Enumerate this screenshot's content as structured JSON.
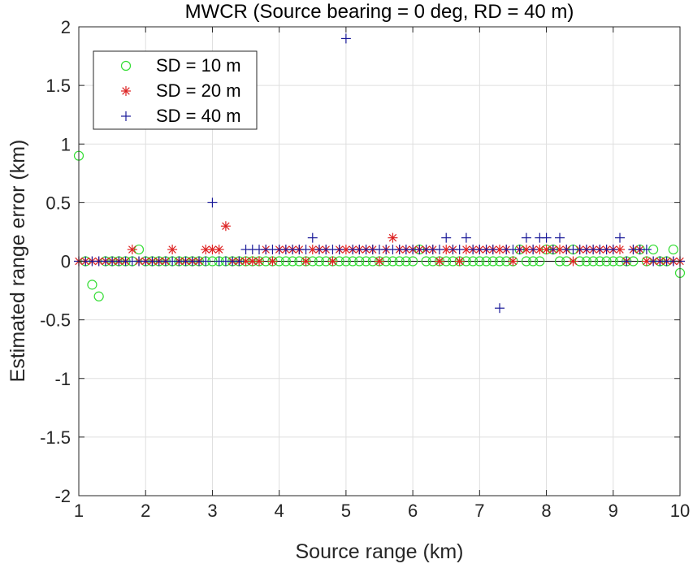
{
  "chart_data": {
    "type": "scatter",
    "title": "MWCR (Source bearing = 0 deg, RD = 40 m)",
    "xlabel": "Source range (km)",
    "ylabel": "Estimated range error (km)",
    "xlim": [
      1,
      10
    ],
    "ylim": [
      -2,
      2
    ],
    "xticks": [
      "1",
      "2",
      "3",
      "4",
      "5",
      "6",
      "7",
      "8",
      "9",
      "10"
    ],
    "yticks": [
      "-2",
      "-1.5",
      "-1",
      "-0.5",
      "0",
      "0.5",
      "1",
      "1.5",
      "2"
    ],
    "grid": true,
    "legend_position": "top-left",
    "reference_line": {
      "y": 0,
      "color": "#000000"
    },
    "series": [
      {
        "name": "SD = 10 m",
        "marker": "circle",
        "color": "#33dd33",
        "x": [
          1.0,
          1.1,
          1.2,
          1.3,
          1.4,
          1.5,
          1.6,
          1.7,
          1.8,
          1.9,
          2.0,
          2.1,
          2.2,
          2.3,
          2.4,
          2.5,
          2.6,
          2.7,
          2.8,
          2.9,
          3.0,
          3.1,
          3.2,
          3.3,
          3.4,
          3.5,
          3.6,
          3.7,
          3.8,
          3.9,
          4.0,
          4.1,
          4.2,
          4.3,
          4.4,
          4.5,
          4.6,
          4.7,
          4.8,
          4.9,
          5.0,
          5.1,
          5.2,
          5.3,
          5.4,
          5.5,
          5.6,
          5.7,
          5.8,
          5.9,
          6.0,
          6.1,
          6.2,
          6.3,
          6.4,
          6.5,
          6.6,
          6.7,
          6.8,
          6.9,
          7.0,
          7.1,
          7.2,
          7.3,
          7.4,
          7.5,
          7.6,
          7.7,
          7.8,
          7.9,
          8.0,
          8.1,
          8.2,
          8.3,
          8.4,
          8.5,
          8.6,
          8.7,
          8.8,
          8.9,
          9.0,
          9.1,
          9.2,
          9.3,
          9.4,
          9.5,
          9.6,
          9.7,
          9.8,
          9.9,
          10.0
        ],
        "y": [
          0.9,
          0,
          -0.2,
          -0.3,
          0,
          0,
          0,
          0,
          0,
          0.1,
          0,
          0,
          0,
          0,
          0,
          0,
          0,
          0,
          0,
          0,
          0,
          0,
          0,
          0,
          0,
          0,
          0,
          0,
          0,
          0,
          0,
          0,
          0,
          0,
          0,
          0,
          0,
          0,
          0,
          0,
          0,
          0,
          0,
          0,
          0,
          0,
          0,
          0,
          0,
          0,
          0,
          0.1,
          0,
          0,
          0,
          0,
          0,
          0,
          0,
          0,
          0,
          0,
          0,
          0,
          0,
          0,
          0.1,
          0,
          0,
          0,
          0.1,
          0.1,
          0,
          0,
          0.1,
          0,
          0,
          0,
          0,
          0,
          0,
          0,
          0,
          0,
          0.1,
          0,
          0.1,
          0,
          0,
          0.1,
          -0.1
        ]
      },
      {
        "name": "SD = 20 m",
        "marker": "asterisk",
        "color": "#dd2222",
        "x": [
          1.0,
          1.1,
          1.2,
          1.3,
          1.4,
          1.5,
          1.6,
          1.7,
          1.8,
          1.9,
          2.0,
          2.1,
          2.2,
          2.3,
          2.4,
          2.5,
          2.6,
          2.7,
          2.8,
          2.9,
          3.0,
          3.1,
          3.2,
          3.3,
          3.4,
          3.5,
          3.6,
          3.7,
          3.8,
          3.9,
          4.0,
          4.1,
          4.2,
          4.3,
          4.4,
          4.5,
          4.6,
          4.7,
          4.8,
          4.9,
          5.0,
          5.1,
          5.2,
          5.3,
          5.4,
          5.5,
          5.6,
          5.7,
          5.8,
          5.9,
          6.0,
          6.1,
          6.2,
          6.3,
          6.4,
          6.5,
          6.6,
          6.7,
          6.8,
          6.9,
          7.0,
          7.1,
          7.2,
          7.3,
          7.4,
          7.5,
          7.6,
          7.7,
          7.8,
          7.9,
          8.0,
          8.1,
          8.2,
          8.3,
          8.4,
          8.5,
          8.6,
          8.7,
          8.8,
          8.9,
          9.0,
          9.1,
          9.2,
          9.3,
          9.4,
          9.5,
          9.6,
          9.7,
          9.8,
          9.9,
          10.0
        ],
        "y": [
          0,
          0,
          0,
          0,
          0,
          0,
          0,
          0,
          0.1,
          0,
          0,
          0,
          0,
          0,
          0.1,
          0,
          0,
          0,
          0,
          0.1,
          0.1,
          0.1,
          0.3,
          0,
          0,
          0,
          0,
          0,
          0.1,
          0,
          0.1,
          0.1,
          0.1,
          0.1,
          0,
          0.1,
          0.1,
          0.1,
          0,
          0.1,
          0.1,
          0.1,
          0.1,
          0.1,
          0.1,
          0,
          0.1,
          0.2,
          0.1,
          0.1,
          0.1,
          0.1,
          0.1,
          0.1,
          0,
          0.1,
          0.1,
          0,
          0.1,
          0.1,
          0.1,
          0.1,
          0.1,
          0.1,
          0.1,
          0,
          0.1,
          0.1,
          0.1,
          0.1,
          0.1,
          0.1,
          0.1,
          0.1,
          0,
          0.1,
          0.1,
          0.1,
          0.1,
          0.1,
          0.1,
          0.1,
          0,
          0.1,
          0.1,
          0,
          0,
          0,
          0,
          0,
          0
        ]
      },
      {
        "name": "SD = 40 m",
        "marker": "plus",
        "color": "#1a1a99",
        "x": [
          1.0,
          1.1,
          1.2,
          1.3,
          1.4,
          1.5,
          1.6,
          1.7,
          1.8,
          1.9,
          2.0,
          2.1,
          2.2,
          2.3,
          2.4,
          2.5,
          2.6,
          2.7,
          2.8,
          2.9,
          3.0,
          3.1,
          3.2,
          3.3,
          3.4,
          3.5,
          3.6,
          3.7,
          3.8,
          3.9,
          4.0,
          4.1,
          4.2,
          4.3,
          4.4,
          4.5,
          4.6,
          4.7,
          4.8,
          4.9,
          5.0,
          5.1,
          5.2,
          5.3,
          5.4,
          5.5,
          5.6,
          5.7,
          5.8,
          5.9,
          6.0,
          6.1,
          6.2,
          6.3,
          6.4,
          6.5,
          6.6,
          6.7,
          6.8,
          6.9,
          7.0,
          7.1,
          7.2,
          7.3,
          7.4,
          7.5,
          7.6,
          7.7,
          7.8,
          7.9,
          8.0,
          8.1,
          8.2,
          8.3,
          8.4,
          8.5,
          8.6,
          8.7,
          8.8,
          8.9,
          9.0,
          9.1,
          9.2,
          9.3,
          9.4,
          9.5,
          9.6,
          9.7,
          9.8,
          9.9,
          10.0
        ],
        "y": [
          0,
          0,
          0,
          0,
          0,
          0,
          0,
          0,
          0,
          0,
          0,
          0,
          0,
          0,
          0,
          0,
          0,
          0,
          0,
          0,
          0.5,
          0,
          0,
          0,
          0,
          0.1,
          0.1,
          0.1,
          0.1,
          0.1,
          0.1,
          0.1,
          0.1,
          0.1,
          0.1,
          0.2,
          0.1,
          0.1,
          0.1,
          0.1,
          1.9,
          0.1,
          0.1,
          0.1,
          0.1,
          0.1,
          0.1,
          0.1,
          0.1,
          0.1,
          0.1,
          0.1,
          0.1,
          0.1,
          0.1,
          0.2,
          0.1,
          0.1,
          0.2,
          0.1,
          0.1,
          0.1,
          0.1,
          -0.4,
          0.1,
          0.1,
          0.1,
          0.2,
          0.1,
          0.2,
          0.2,
          0.1,
          0.2,
          0.1,
          0.1,
          0.1,
          0.1,
          0.1,
          0.1,
          0.1,
          0.1,
          0.2,
          0,
          0.1,
          0.1,
          0.1,
          0,
          0,
          0,
          0,
          0
        ]
      }
    ]
  }
}
